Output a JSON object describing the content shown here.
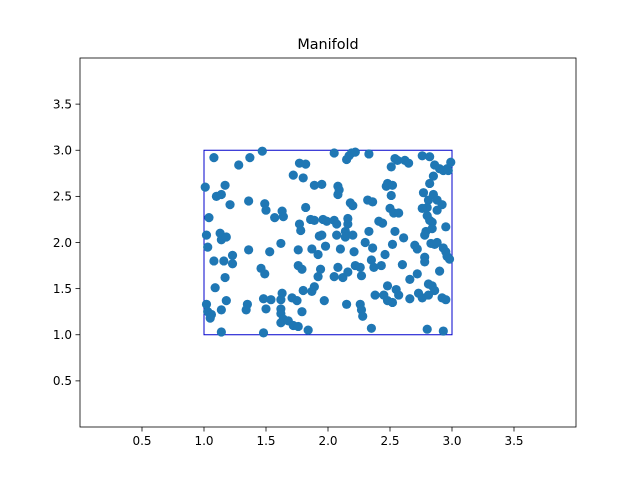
{
  "chart_data": {
    "type": "scatter",
    "title": "Manifold",
    "xlabel": "",
    "ylabel": "",
    "xlim": [
      0.0,
      4.0
    ],
    "ylim": [
      0.0,
      4.0
    ],
    "xticks": [
      0.5,
      1.0,
      1.5,
      2.0,
      2.5,
      3.0,
      3.5
    ],
    "yticks": [
      0.5,
      1.0,
      1.5,
      2.0,
      2.5,
      3.0,
      3.5
    ],
    "xtick_labels": [
      "0.5",
      "1.0",
      "1.5",
      "2.0",
      "2.5",
      "3.0",
      "3.5"
    ],
    "ytick_labels": [
      "0.5",
      "1.0",
      "1.5",
      "2.0",
      "2.5",
      "3.0",
      "3.5"
    ],
    "grid": false,
    "point_color": "#1f77b4",
    "region": {
      "x": [
        1.0,
        3.0
      ],
      "y": [
        1.0,
        3.0
      ],
      "color": "#0000cc"
    },
    "points": [
      [
        1.08,
        2.92
      ],
      [
        1.01,
        2.6
      ],
      [
        1.04,
        2.27
      ],
      [
        1.02,
        2.08
      ],
      [
        1.03,
        1.95
      ],
      [
        1.08,
        1.8
      ],
      [
        1.02,
        1.33
      ],
      [
        1.03,
        1.25
      ],
      [
        1.06,
        1.22
      ],
      [
        1.05,
        1.18
      ],
      [
        1.09,
        1.51
      ],
      [
        1.1,
        2.5
      ],
      [
        1.14,
        2.52
      ],
      [
        1.17,
        2.62
      ],
      [
        1.13,
        2.1
      ],
      [
        1.14,
        2.03
      ],
      [
        1.16,
        1.8
      ],
      [
        1.18,
        2.06
      ],
      [
        1.21,
        2.41
      ],
      [
        1.23,
        1.86
      ],
      [
        1.23,
        1.77
      ],
      [
        1.17,
        1.62
      ],
      [
        1.18,
        1.37
      ],
      [
        1.14,
        1.27
      ],
      [
        1.14,
        1.03
      ],
      [
        1.28,
        2.84
      ],
      [
        1.37,
        2.92
      ],
      [
        1.47,
        2.99
      ],
      [
        1.36,
        2.45
      ],
      [
        1.49,
        2.42
      ],
      [
        1.5,
        2.35
      ],
      [
        1.57,
        2.27
      ],
      [
        1.63,
        2.34
      ],
      [
        1.64,
        2.28
      ],
      [
        1.36,
        1.92
      ],
      [
        1.46,
        1.72
      ],
      [
        1.49,
        1.66
      ],
      [
        1.53,
        1.9
      ],
      [
        1.62,
        1.99
      ],
      [
        1.48,
        1.39
      ],
      [
        1.54,
        1.38
      ],
      [
        1.63,
        1.45
      ],
      [
        1.62,
        1.38
      ],
      [
        1.35,
        1.33
      ],
      [
        1.34,
        1.27
      ],
      [
        1.5,
        1.28
      ],
      [
        1.62,
        1.28
      ],
      [
        1.62,
        1.23
      ],
      [
        1.64,
        1.17
      ],
      [
        1.62,
        1.13
      ],
      [
        1.68,
        1.15
      ],
      [
        1.72,
        1.1
      ],
      [
        1.76,
        1.09
      ],
      [
        1.48,
        1.02
      ],
      [
        1.84,
        1.05
      ],
      [
        1.71,
        1.4
      ],
      [
        1.75,
        1.37
      ],
      [
        1.79,
        1.25
      ],
      [
        1.72,
        2.73
      ],
      [
        1.77,
        2.86
      ],
      [
        1.82,
        2.85
      ],
      [
        1.8,
        2.7
      ],
      [
        1.89,
        2.62
      ],
      [
        1.95,
        2.63
      ],
      [
        1.77,
        2.2
      ],
      [
        1.78,
        2.13
      ],
      [
        1.82,
        2.38
      ],
      [
        1.86,
        2.25
      ],
      [
        1.89,
        2.24
      ],
      [
        1.96,
        2.25
      ],
      [
        1.99,
        2.23
      ],
      [
        1.93,
        2.07
      ],
      [
        1.95,
        2.08
      ],
      [
        1.76,
        1.92
      ],
      [
        1.87,
        1.93
      ],
      [
        1.92,
        1.87
      ],
      [
        1.98,
        1.96
      ],
      [
        1.76,
        1.75
      ],
      [
        1.79,
        1.71
      ],
      [
        1.94,
        1.71
      ],
      [
        1.92,
        1.63
      ],
      [
        1.8,
        1.48
      ],
      [
        1.87,
        1.47
      ],
      [
        1.89,
        1.52
      ],
      [
        1.97,
        1.37
      ],
      [
        2.05,
        2.97
      ],
      [
        2.08,
        2.61
      ],
      [
        2.08,
        2.52
      ],
      [
        2.09,
        2.57
      ],
      [
        2.15,
        2.9
      ],
      [
        2.17,
        2.94
      ],
      [
        2.19,
        2.97
      ],
      [
        2.22,
        2.98
      ],
      [
        2.18,
        2.43
      ],
      [
        2.2,
        2.4
      ],
      [
        2.05,
        2.24
      ],
      [
        2.07,
        2.2
      ],
      [
        2.16,
        2.2
      ],
      [
        2.16,
        2.26
      ],
      [
        2.07,
        2.08
      ],
      [
        2.14,
        2.12
      ],
      [
        2.14,
        2.06
      ],
      [
        2.2,
        2.08
      ],
      [
        2.1,
        1.93
      ],
      [
        2.08,
        1.73
      ],
      [
        2.05,
        1.63
      ],
      [
        2.12,
        1.62
      ],
      [
        2.16,
        1.68
      ],
      [
        2.22,
        1.75
      ],
      [
        2.21,
        1.9
      ],
      [
        2.15,
        1.33
      ],
      [
        2.26,
        1.33
      ],
      [
        2.27,
        1.27
      ],
      [
        2.28,
        1.2
      ],
      [
        2.27,
        1.64
      ],
      [
        2.26,
        1.73
      ],
      [
        2.33,
        2.96
      ],
      [
        2.32,
        2.46
      ],
      [
        2.36,
        2.44
      ],
      [
        2.3,
        2.0
      ],
      [
        2.33,
        2.12
      ],
      [
        2.36,
        1.94
      ],
      [
        2.35,
        1.81
      ],
      [
        2.37,
        1.73
      ],
      [
        2.35,
        1.07
      ],
      [
        2.41,
        2.23
      ],
      [
        2.44,
        2.21
      ],
      [
        2.47,
        2.61
      ],
      [
        2.48,
        2.64
      ],
      [
        2.51,
        2.82
      ],
      [
        2.52,
        2.62
      ],
      [
        2.51,
        2.51
      ],
      [
        2.5,
        2.37
      ],
      [
        2.53,
        2.32
      ],
      [
        2.57,
        2.32
      ],
      [
        2.54,
        2.12
      ],
      [
        2.61,
        2.05
      ],
      [
        2.52,
        1.98
      ],
      [
        2.46,
        1.87
      ],
      [
        2.43,
        1.75
      ],
      [
        2.38,
        1.43
      ],
      [
        2.45,
        1.43
      ],
      [
        2.48,
        1.37
      ],
      [
        2.48,
        1.53
      ],
      [
        2.55,
        1.49
      ],
      [
        2.57,
        1.43
      ],
      [
        2.52,
        1.35
      ],
      [
        2.54,
        2.91
      ],
      [
        2.56,
        2.89
      ],
      [
        2.62,
        2.89
      ],
      [
        2.65,
        2.86
      ],
      [
        2.6,
        1.76
      ],
      [
        2.66,
        1.6
      ],
      [
        2.7,
        1.97
      ],
      [
        2.72,
        1.93
      ],
      [
        2.72,
        1.66
      ],
      [
        2.73,
        1.45
      ],
      [
        2.76,
        1.4
      ],
      [
        2.66,
        1.39
      ],
      [
        2.76,
        2.94
      ],
      [
        2.82,
        2.93
      ],
      [
        2.85,
        2.72
      ],
      [
        2.77,
        2.54
      ],
      [
        2.81,
        2.46
      ],
      [
        2.85,
        2.52
      ],
      [
        2.88,
        2.46
      ],
      [
        2.92,
        2.41
      ],
      [
        2.88,
        2.35
      ],
      [
        2.8,
        2.38
      ],
      [
        2.76,
        2.37
      ],
      [
        2.8,
        2.29
      ],
      [
        2.82,
        2.24
      ],
      [
        2.84,
        2.22
      ],
      [
        2.84,
        2.15
      ],
      [
        2.79,
        2.12
      ],
      [
        2.78,
        2.08
      ],
      [
        2.83,
        1.99
      ],
      [
        2.86,
        1.98
      ],
      [
        2.88,
        2.0
      ],
      [
        2.93,
        1.94
      ],
      [
        2.95,
        1.9
      ],
      [
        2.96,
        1.85
      ],
      [
        2.98,
        1.82
      ],
      [
        2.78,
        1.84
      ],
      [
        2.78,
        1.79
      ],
      [
        2.9,
        1.69
      ],
      [
        2.81,
        1.55
      ],
      [
        2.84,
        1.53
      ],
      [
        2.86,
        1.48
      ],
      [
        2.81,
        1.43
      ],
      [
        2.92,
        1.4
      ],
      [
        2.95,
        1.38
      ],
      [
        2.8,
        1.06
      ],
      [
        2.93,
        1.04
      ],
      [
        2.9,
        2.8
      ],
      [
        2.93,
        2.78
      ],
      [
        2.96,
        2.8
      ],
      [
        2.97,
        2.78
      ],
      [
        2.99,
        2.87
      ],
      [
        2.95,
        2.17
      ],
      [
        2.82,
        2.64
      ],
      [
        2.86,
        2.84
      ]
    ]
  }
}
